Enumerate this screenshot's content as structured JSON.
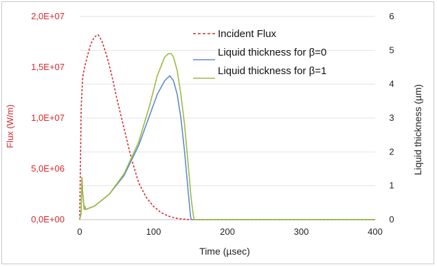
{
  "chart_data": {
    "type": "line",
    "xlabel": "Time (µsec)",
    "ylabel_left": "Flux (W/m)",
    "ylabel_right": "Liquid thickness (µm)",
    "xlim": [
      0,
      400
    ],
    "ylim_left": [
      0,
      20000000
    ],
    "ylim_right": [
      0,
      6
    ],
    "x_ticks": [
      0,
      100,
      200,
      300,
      400
    ],
    "x_tick_labels": [
      "0",
      "100",
      "200",
      "300",
      "400"
    ],
    "y_left_ticks": [
      0,
      5000000,
      10000000,
      15000000,
      20000000
    ],
    "y_left_tick_labels": [
      "0,0E+00",
      "5,0E+06",
      "1,0E+07",
      "1,5E+07",
      "2,0E+07"
    ],
    "y_right_ticks": [
      0,
      1,
      2,
      3,
      4,
      5,
      6
    ],
    "y_right_tick_labels": [
      "0",
      "1",
      "2",
      "3",
      "4",
      "5",
      "6"
    ],
    "grid": "horizontal",
    "legend_position": "top-right",
    "series": [
      {
        "name": "Incident Flux",
        "axis": "left",
        "color": "#d9262c",
        "style": "dashed",
        "x": [
          0,
          2,
          4,
          6,
          10,
          15,
          20,
          25,
          30,
          35,
          40,
          45,
          50,
          55,
          60,
          65,
          70,
          75,
          80,
          90,
          100,
          110,
          120,
          130,
          140,
          150,
          400
        ],
        "y": [
          0,
          11000000,
          14000000,
          14800000,
          16000000,
          17300000,
          18000000,
          18200000,
          17600000,
          16500000,
          15200000,
          13700000,
          12000000,
          10500000,
          9000000,
          7500000,
          6000000,
          4800000,
          3600000,
          2200000,
          1300000,
          700000,
          350000,
          150000,
          50000,
          0,
          0
        ]
      },
      {
        "name": "Liquid thickness for β=0",
        "axis": "right",
        "color": "#5b8bd0",
        "style": "solid",
        "x": [
          0,
          2,
          3,
          4,
          5,
          6,
          7,
          8,
          20,
          40,
          60,
          80,
          95,
          105,
          115,
          122,
          127,
          132,
          137,
          142,
          147,
          150,
          151,
          400
        ],
        "y": [
          0,
          0.2,
          1.25,
          0.8,
          0.6,
          0.3,
          0.4,
          0.3,
          0.4,
          0.75,
          1.3,
          2.2,
          3.1,
          3.7,
          4.1,
          4.25,
          4.1,
          3.7,
          3.0,
          2.0,
          0.8,
          0.1,
          0,
          0
        ]
      },
      {
        "name": "Liquid thickness for β=1",
        "axis": "right",
        "color": "#9bbb3c",
        "style": "solid",
        "x": [
          0,
          2,
          3,
          4,
          5,
          6,
          7,
          8,
          20,
          40,
          60,
          80,
          95,
          105,
          115,
          120,
          124,
          127,
          132,
          137,
          142,
          147,
          151,
          154,
          155,
          400
        ],
        "y": [
          0,
          0.2,
          1.25,
          0.8,
          0.6,
          0.3,
          0.4,
          0.3,
          0.4,
          0.75,
          1.35,
          2.3,
          3.4,
          4.25,
          4.8,
          4.9,
          4.9,
          4.8,
          4.4,
          3.7,
          2.8,
          1.6,
          0.6,
          0.1,
          0,
          0
        ]
      }
    ]
  }
}
